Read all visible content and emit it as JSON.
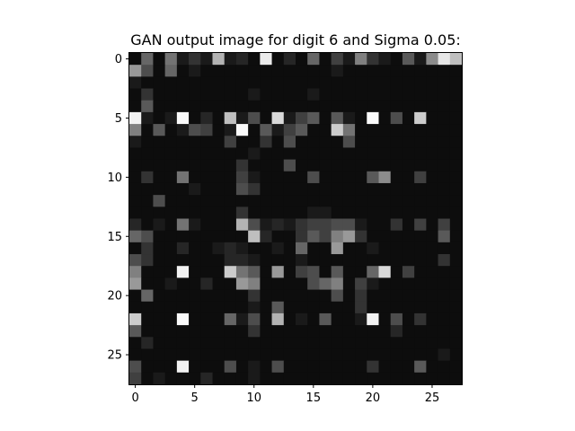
{
  "chart_data": {
    "type": "heatmap",
    "title": "GAN output image for digit 6 and Sigma 0.05:",
    "xlabel": "",
    "ylabel": "",
    "colormap": "gray",
    "value_range": [
      0,
      1
    ],
    "rows": 28,
    "cols": 28,
    "x_ticks": [
      0,
      5,
      10,
      15,
      20,
      25
    ],
    "y_ticks": [
      0,
      5,
      10,
      15,
      20,
      25
    ],
    "x_tick_labels": [
      "0",
      "5",
      "10",
      "15",
      "20",
      "25"
    ],
    "y_tick_labels": [
      "0",
      "5",
      "10",
      "15",
      "20",
      "25"
    ],
    "values": [
      [
        0.05,
        0.4,
        0.05,
        0.45,
        0.1,
        0.2,
        0.1,
        0.7,
        0.1,
        0.15,
        0.05,
        0.92,
        0.05,
        0.15,
        0.05,
        0.4,
        0.05,
        0.25,
        0.1,
        0.5,
        0.2,
        0.1,
        0.05,
        0.35,
        0.1,
        0.55,
        0.9,
        0.75
      ],
      [
        0.6,
        0.3,
        0.05,
        0.4,
        0.05,
        0.1,
        0.05,
        0.05,
        0.05,
        0.05,
        0.05,
        0.05,
        0.05,
        0.05,
        0.05,
        0.05,
        0.05,
        0.1,
        0.05,
        0.05,
        0.05,
        0.05,
        0.05,
        0.05,
        0.05,
        0.05,
        0.05,
        0.05
      ],
      [
        0.1,
        0.05,
        0.05,
        0.05,
        0.05,
        0.05,
        0.05,
        0.05,
        0.05,
        0.05,
        0.05,
        0.05,
        0.05,
        0.05,
        0.05,
        0.05,
        0.05,
        0.05,
        0.05,
        0.05,
        0.05,
        0.05,
        0.05,
        0.05,
        0.05,
        0.05,
        0.05,
        0.05
      ],
      [
        0.05,
        0.2,
        0.05,
        0.05,
        0.05,
        0.05,
        0.05,
        0.05,
        0.05,
        0.05,
        0.1,
        0.05,
        0.05,
        0.05,
        0.05,
        0.1,
        0.05,
        0.05,
        0.05,
        0.05,
        0.05,
        0.05,
        0.05,
        0.05,
        0.05,
        0.05,
        0.05,
        0.05
      ],
      [
        0.05,
        0.35,
        0.05,
        0.05,
        0.05,
        0.05,
        0.05,
        0.05,
        0.05,
        0.05,
        0.05,
        0.05,
        0.05,
        0.05,
        0.05,
        0.05,
        0.05,
        0.05,
        0.05,
        0.05,
        0.05,
        0.05,
        0.05,
        0.05,
        0.05,
        0.05,
        0.05,
        0.05
      ],
      [
        0.95,
        0.1,
        0.05,
        0.1,
        0.98,
        0.05,
        0.15,
        0.05,
        0.75,
        0.1,
        0.3,
        0.05,
        0.85,
        0.1,
        0.25,
        0.35,
        0.05,
        0.35,
        0.1,
        0.05,
        0.98,
        0.05,
        0.3,
        0.05,
        0.8,
        0.05,
        0.05,
        0.05
      ],
      [
        0.5,
        0.05,
        0.35,
        0.05,
        0.1,
        0.3,
        0.25,
        0.05,
        0.1,
        0.98,
        0.05,
        0.35,
        0.1,
        0.25,
        0.35,
        0.05,
        0.05,
        0.8,
        0.45,
        0.05,
        0.05,
        0.05,
        0.05,
        0.05,
        0.05,
        0.05,
        0.05,
        0.05
      ],
      [
        0.1,
        0.05,
        0.05,
        0.05,
        0.05,
        0.05,
        0.05,
        0.05,
        0.25,
        0.05,
        0.05,
        0.2,
        0.05,
        0.3,
        0.05,
        0.05,
        0.05,
        0.05,
        0.3,
        0.05,
        0.05,
        0.05,
        0.05,
        0.05,
        0.05,
        0.05,
        0.05,
        0.05
      ],
      [
        0.05,
        0.05,
        0.05,
        0.05,
        0.05,
        0.05,
        0.05,
        0.05,
        0.05,
        0.05,
        0.1,
        0.05,
        0.05,
        0.05,
        0.05,
        0.05,
        0.05,
        0.05,
        0.05,
        0.05,
        0.05,
        0.05,
        0.05,
        0.05,
        0.05,
        0.05,
        0.05,
        0.05
      ],
      [
        0.05,
        0.05,
        0.05,
        0.05,
        0.05,
        0.05,
        0.05,
        0.05,
        0.05,
        0.2,
        0.05,
        0.05,
        0.05,
        0.3,
        0.05,
        0.05,
        0.05,
        0.05,
        0.05,
        0.05,
        0.05,
        0.05,
        0.05,
        0.05,
        0.05,
        0.05,
        0.05,
        0.05
      ],
      [
        0.05,
        0.2,
        0.05,
        0.05,
        0.45,
        0.05,
        0.05,
        0.05,
        0.05,
        0.25,
        0.1,
        0.05,
        0.05,
        0.05,
        0.05,
        0.3,
        0.05,
        0.05,
        0.05,
        0.05,
        0.35,
        0.55,
        0.05,
        0.05,
        0.25,
        0.05,
        0.05,
        0.05
      ],
      [
        0.05,
        0.05,
        0.05,
        0.05,
        0.05,
        0.1,
        0.05,
        0.05,
        0.05,
        0.3,
        0.2,
        0.05,
        0.05,
        0.05,
        0.05,
        0.05,
        0.05,
        0.05,
        0.05,
        0.05,
        0.05,
        0.05,
        0.05,
        0.05,
        0.05,
        0.05,
        0.05,
        0.05
      ],
      [
        0.05,
        0.05,
        0.3,
        0.05,
        0.05,
        0.05,
        0.05,
        0.05,
        0.05,
        0.05,
        0.05,
        0.05,
        0.05,
        0.05,
        0.05,
        0.05,
        0.05,
        0.05,
        0.05,
        0.05,
        0.05,
        0.05,
        0.05,
        0.05,
        0.05,
        0.05,
        0.05,
        0.05
      ],
      [
        0.05,
        0.05,
        0.05,
        0.05,
        0.05,
        0.05,
        0.05,
        0.05,
        0.05,
        0.2,
        0.05,
        0.05,
        0.05,
        0.05,
        0.05,
        0.1,
        0.1,
        0.05,
        0.05,
        0.05,
        0.05,
        0.05,
        0.05,
        0.05,
        0.05,
        0.05,
        0.05,
        0.05
      ],
      [
        0.15,
        0.05,
        0.1,
        0.05,
        0.45,
        0.1,
        0.05,
        0.05,
        0.05,
        0.7,
        0.3,
        0.1,
        0.15,
        0.1,
        0.2,
        0.25,
        0.25,
        0.3,
        0.3,
        0.1,
        0.05,
        0.05,
        0.2,
        0.05,
        0.25,
        0.05,
        0.25,
        0.05
      ],
      [
        0.4,
        0.3,
        0.05,
        0.05,
        0.05,
        0.05,
        0.05,
        0.05,
        0.05,
        0.05,
        0.75,
        0.15,
        0.05,
        0.05,
        0.2,
        0.35,
        0.25,
        0.5,
        0.6,
        0.2,
        0.05,
        0.05,
        0.05,
        0.05,
        0.05,
        0.05,
        0.35,
        0.05
      ],
      [
        0.05,
        0.2,
        0.05,
        0.05,
        0.15,
        0.05,
        0.05,
        0.1,
        0.15,
        0.1,
        0.05,
        0.05,
        0.1,
        0.05,
        0.4,
        0.05,
        0.05,
        0.6,
        0.05,
        0.05,
        0.1,
        0.05,
        0.05,
        0.05,
        0.05,
        0.05,
        0.05,
        0.05
      ],
      [
        0.3,
        0.2,
        0.05,
        0.05,
        0.05,
        0.05,
        0.05,
        0.05,
        0.15,
        0.15,
        0.1,
        0.05,
        0.05,
        0.05,
        0.1,
        0.05,
        0.05,
        0.05,
        0.05,
        0.05,
        0.05,
        0.05,
        0.05,
        0.05,
        0.05,
        0.05,
        0.2,
        0.05
      ],
      [
        0.5,
        0.05,
        0.05,
        0.05,
        0.95,
        0.05,
        0.05,
        0.05,
        0.8,
        0.45,
        0.35,
        0.05,
        0.6,
        0.05,
        0.25,
        0.3,
        0.05,
        0.35,
        0.05,
        0.05,
        0.4,
        0.85,
        0.05,
        0.25,
        0.05,
        0.05,
        0.05,
        0.05
      ],
      [
        0.6,
        0.05,
        0.05,
        0.1,
        0.05,
        0.05,
        0.15,
        0.05,
        0.05,
        0.6,
        0.5,
        0.05,
        0.05,
        0.05,
        0.05,
        0.3,
        0.4,
        0.5,
        0.05,
        0.25,
        0.1,
        0.05,
        0.05,
        0.05,
        0.05,
        0.05,
        0.05,
        0.05
      ],
      [
        0.05,
        0.4,
        0.05,
        0.05,
        0.05,
        0.05,
        0.05,
        0.05,
        0.05,
        0.05,
        0.2,
        0.05,
        0.05,
        0.05,
        0.05,
        0.05,
        0.05,
        0.3,
        0.05,
        0.2,
        0.05,
        0.05,
        0.05,
        0.05,
        0.05,
        0.05,
        0.05,
        0.05
      ],
      [
        0.05,
        0.05,
        0.05,
        0.05,
        0.05,
        0.05,
        0.05,
        0.05,
        0.05,
        0.05,
        0.1,
        0.05,
        0.35,
        0.05,
        0.05,
        0.05,
        0.05,
        0.05,
        0.05,
        0.2,
        0.05,
        0.05,
        0.05,
        0.05,
        0.05,
        0.05,
        0.05,
        0.05
      ],
      [
        0.8,
        0.05,
        0.05,
        0.05,
        0.98,
        0.05,
        0.05,
        0.05,
        0.4,
        0.1,
        0.3,
        0.05,
        0.7,
        0.05,
        0.1,
        0.05,
        0.35,
        0.05,
        0.05,
        0.1,
        0.95,
        0.05,
        0.3,
        0.05,
        0.2,
        0.05,
        0.05,
        0.05
      ],
      [
        0.35,
        0.05,
        0.05,
        0.05,
        0.05,
        0.05,
        0.05,
        0.05,
        0.05,
        0.05,
        0.2,
        0.05,
        0.05,
        0.05,
        0.05,
        0.05,
        0.05,
        0.05,
        0.05,
        0.05,
        0.05,
        0.05,
        0.15,
        0.05,
        0.05,
        0.05,
        0.05,
        0.05
      ],
      [
        0.05,
        0.15,
        0.05,
        0.05,
        0.05,
        0.05,
        0.05,
        0.05,
        0.05,
        0.05,
        0.05,
        0.05,
        0.05,
        0.05,
        0.05,
        0.05,
        0.05,
        0.05,
        0.05,
        0.05,
        0.05,
        0.05,
        0.05,
        0.05,
        0.05,
        0.05,
        0.05,
        0.05
      ],
      [
        0.05,
        0.05,
        0.05,
        0.05,
        0.05,
        0.05,
        0.05,
        0.05,
        0.05,
        0.05,
        0.05,
        0.05,
        0.05,
        0.05,
        0.05,
        0.05,
        0.05,
        0.05,
        0.05,
        0.05,
        0.05,
        0.05,
        0.05,
        0.05,
        0.05,
        0.05,
        0.1,
        0.05
      ],
      [
        0.3,
        0.05,
        0.05,
        0.05,
        0.95,
        0.05,
        0.05,
        0.05,
        0.3,
        0.05,
        0.1,
        0.05,
        0.3,
        0.05,
        0.05,
        0.05,
        0.05,
        0.05,
        0.05,
        0.05,
        0.2,
        0.05,
        0.05,
        0.05,
        0.35,
        0.05,
        0.05,
        0.05
      ],
      [
        0.25,
        0.05,
        0.1,
        0.05,
        0.05,
        0.05,
        0.15,
        0.05,
        0.05,
        0.05,
        0.1,
        0.05,
        0.05,
        0.05,
        0.05,
        0.05,
        0.05,
        0.05,
        0.05,
        0.05,
        0.05,
        0.05,
        0.05,
        0.05,
        0.05,
        0.05,
        0.05,
        0.05
      ]
    ]
  }
}
